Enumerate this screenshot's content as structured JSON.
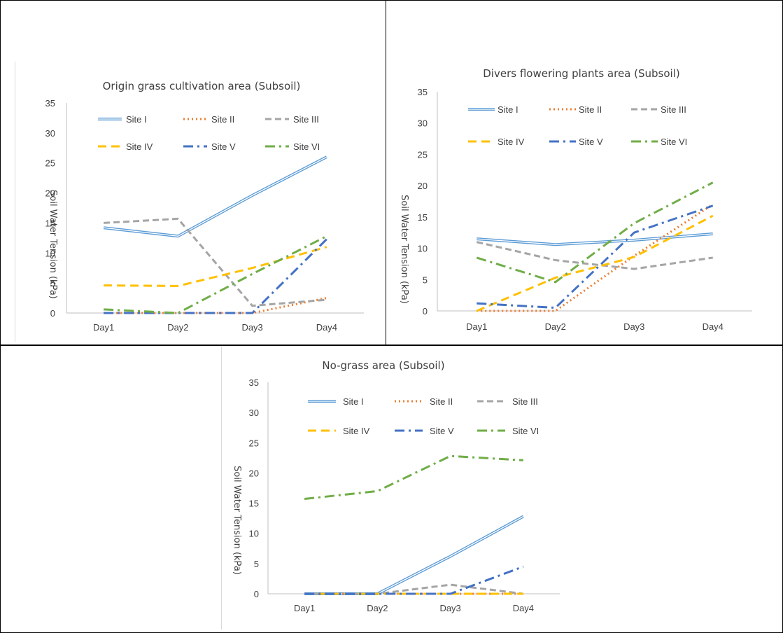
{
  "chart_data": [
    {
      "type": "line",
      "title": "Origin grass cultivation area (Subsoil)",
      "xlabel": "",
      "ylabel": "Soil Water Tension (kPa)",
      "categories": [
        "Day1",
        "Day2",
        "Day3",
        "Day4"
      ],
      "ylim": [
        0,
        35
      ],
      "yticks": [
        "0",
        "5",
        "10",
        "15",
        "20",
        "25",
        "30",
        "35"
      ],
      "legend_position": "top",
      "grid": false,
      "series": [
        {
          "name": "Site I",
          "values": [
            14.2,
            12.8,
            19.6,
            26.0
          ]
        },
        {
          "name": "Site II",
          "values": [
            0,
            0,
            0,
            2.5
          ]
        },
        {
          "name": "Site III",
          "values": [
            15.0,
            15.7,
            1.2,
            2.2
          ]
        },
        {
          "name": "Site IV",
          "values": [
            4.6,
            4.5,
            7.5,
            11.0
          ]
        },
        {
          "name": "Site V",
          "values": [
            0,
            0,
            0,
            12.3
          ]
        },
        {
          "name": "Site VI",
          "values": [
            0.6,
            0,
            6.5,
            12.8
          ]
        }
      ]
    },
    {
      "type": "line",
      "title": "Divers flowering plants area (Subsoil)",
      "xlabel": "",
      "ylabel": "Soil Water Tension (kPa)",
      "categories": [
        "Day1",
        "Day2",
        "Day3",
        "Day4"
      ],
      "ylim": [
        0,
        35
      ],
      "yticks": [
        "0",
        "5",
        "10",
        "15",
        "20",
        "25",
        "30",
        "35"
      ],
      "legend_position": "top",
      "grid": false,
      "series": [
        {
          "name": "Site I",
          "values": [
            11.5,
            10.6,
            11.3,
            12.3
          ]
        },
        {
          "name": "Site II",
          "values": [
            0,
            0,
            8.8,
            17.0
          ]
        },
        {
          "name": "Site III",
          "values": [
            11.0,
            8.1,
            6.7,
            8.5
          ]
        },
        {
          "name": "Site IV",
          "values": [
            0,
            5.3,
            8.6,
            15.2
          ]
        },
        {
          "name": "Site V",
          "values": [
            1.2,
            0.5,
            12.5,
            16.8
          ]
        },
        {
          "name": "Site VI",
          "values": [
            8.5,
            4.6,
            14.0,
            20.5
          ]
        }
      ]
    },
    {
      "type": "line",
      "title": "No-grass area (Subsoil)",
      "xlabel": "",
      "ylabel": "Soil Water Tension (kPa)",
      "categories": [
        "Day1",
        "Day2",
        "Day3",
        "Day4"
      ],
      "ylim": [
        0,
        35
      ],
      "yticks": [
        "0",
        "5",
        "10",
        "15",
        "20",
        "25",
        "30",
        "35"
      ],
      "legend_position": "top",
      "grid": false,
      "series": [
        {
          "name": "Site I",
          "values": [
            0,
            0,
            6.2,
            12.8
          ]
        },
        {
          "name": "Site II",
          "values": [
            0,
            0,
            0,
            0
          ]
        },
        {
          "name": "Site III",
          "values": [
            0,
            0,
            1.5,
            0
          ]
        },
        {
          "name": "Site IV",
          "values": [
            0,
            0,
            0,
            0
          ]
        },
        {
          "name": "Site V",
          "values": [
            0,
            0,
            0,
            4.5
          ]
        },
        {
          "name": "Site VI",
          "values": [
            15.7,
            17.0,
            22.8,
            22.1
          ]
        }
      ]
    }
  ],
  "series_styles": [
    {
      "color": "#5B9BD5",
      "dash": "none",
      "double": true
    },
    {
      "color": "#ED7D31",
      "dash": "2 4",
      "double": false
    },
    {
      "color": "#A5A5A5",
      "dash": "9 5",
      "double": false
    },
    {
      "color": "#FFC000",
      "dash": "12 7",
      "double": false
    },
    {
      "color": "#4472C4",
      "dash": "14 6 3 6",
      "double": false
    },
    {
      "color": "#70AD47",
      "dash": "14 6 3 6",
      "double": false
    }
  ]
}
